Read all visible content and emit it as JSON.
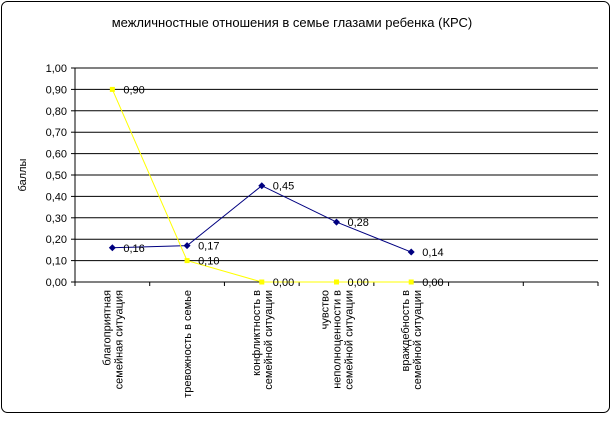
{
  "chart_data": {
    "type": "line",
    "title": "межличностные отношения в семье глазами ребенка (КРС)",
    "y_label": "баллы",
    "categories": [
      "благоприятная\nсемейная ситуация",
      "тревожность в семье",
      "конфликтность в\nсемейной ситуации",
      "чувство\nнеполноценности в\nсемейной ситуации",
      "враждебность в\nсемейной ситуации",
      null,
      null
    ],
    "series": [
      {
        "color": "#000080",
        "marker": "diamond",
        "values": [
          0.16,
          0.17,
          0.45,
          0.28,
          0.14,
          null,
          null
        ],
        "value_labels": [
          "0,16",
          "0,17",
          "0,45",
          "0,28",
          "0,14",
          null,
          null
        ]
      },
      {
        "color": "#ffff00",
        "marker": "square",
        "values": [
          0.9,
          0.1,
          0,
          0,
          0,
          null,
          null
        ],
        "value_labels": [
          "0,90",
          "0,10",
          "0,00",
          "0,00",
          "0,00",
          null,
          null
        ]
      }
    ],
    "ylim": [
      0,
      1
    ],
    "yticks": [
      {
        "value": 0,
        "label": "0,00"
      },
      {
        "value": 0.1,
        "label": "0,10"
      },
      {
        "value": 0.2,
        "label": "0,20"
      },
      {
        "value": 0.3,
        "label": "0,30"
      },
      {
        "value": 0.4,
        "label": "0,40"
      },
      {
        "value": 0.5,
        "label": "0,50"
      },
      {
        "value": 0.6,
        "label": "0,60"
      },
      {
        "value": 0.7,
        "label": "0,70"
      },
      {
        "value": 0.8,
        "label": "0,80"
      },
      {
        "value": 0.9,
        "label": "0,90"
      },
      {
        "value": 1,
        "label": "1,00"
      }
    ],
    "grid": true
  }
}
